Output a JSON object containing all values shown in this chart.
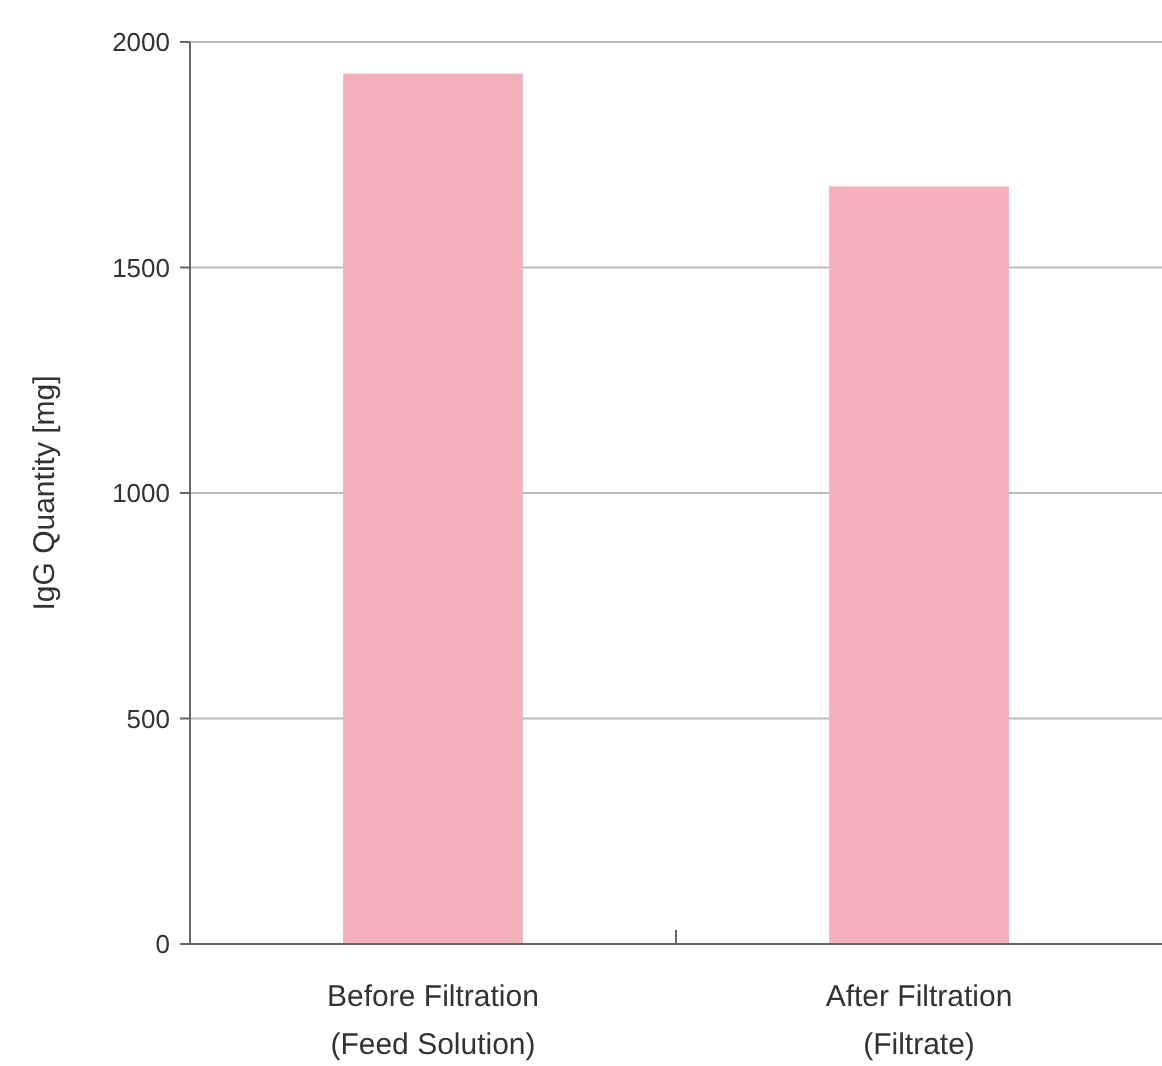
{
  "chart_data": {
    "type": "bar",
    "ylabel": "IgG Quantity [mg]",
    "categories": [
      "Before Filtration\n(Feed Solution)",
      "After Filtration\n(Filtrate)"
    ],
    "values": [
      1930,
      1680
    ],
    "color": "#f4b0bb",
    "ylim": [
      0,
      2000
    ],
    "yticks": [
      0,
      500,
      1000,
      1500,
      2000
    ],
    "grid": "y"
  }
}
